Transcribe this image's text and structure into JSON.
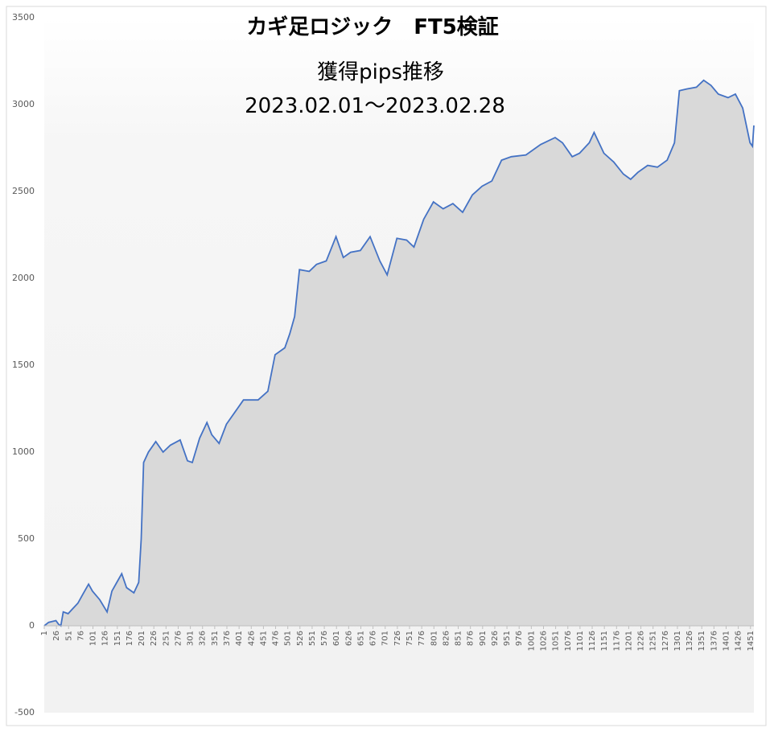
{
  "chart_data": {
    "type": "area",
    "title": "カギ足ロジック　FT5検証",
    "subtitle": "獲得pips推移",
    "date_range": "2023.02.01～2023.02.28",
    "x": [
      1,
      10,
      25,
      30,
      35,
      40,
      50,
      60,
      70,
      80,
      92,
      100,
      115,
      130,
      140,
      150,
      160,
      170,
      185,
      195,
      200,
      205,
      215,
      230,
      245,
      260,
      280,
      295,
      305,
      320,
      335,
      345,
      360,
      375,
      395,
      410,
      425,
      440,
      460,
      475,
      495,
      505,
      515,
      525,
      545,
      560,
      580,
      600,
      615,
      630,
      650,
      670,
      690,
      705,
      725,
      745,
      760,
      780,
      800,
      820,
      840,
      860,
      880,
      900,
      920,
      940,
      960,
      990,
      1020,
      1050,
      1065,
      1085,
      1100,
      1120,
      1130,
      1150,
      1170,
      1190,
      1205,
      1220,
      1240,
      1260,
      1280,
      1295,
      1305,
      1320,
      1340,
      1355,
      1370,
      1385,
      1405,
      1420,
      1435,
      1450,
      1455,
      1458
    ],
    "series": [
      {
        "name": "獲得pips",
        "color": "#4472c4",
        "values": [
          0,
          20,
          30,
          10,
          0,
          80,
          70,
          100,
          130,
          180,
          240,
          200,
          150,
          80,
          200,
          250,
          300,
          220,
          190,
          250,
          500,
          940,
          1000,
          1060,
          1000,
          1040,
          1070,
          950,
          940,
          1080,
          1170,
          1100,
          1050,
          1160,
          1240,
          1300,
          1300,
          1300,
          1350,
          1560,
          1600,
          1680,
          1780,
          2050,
          2040,
          2080,
          2100,
          2240,
          2120,
          2150,
          2160,
          2240,
          2100,
          2020,
          2230,
          2220,
          2180,
          2340,
          2440,
          2400,
          2430,
          2380,
          2480,
          2530,
          2560,
          2680,
          2700,
          2710,
          2770,
          2810,
          2780,
          2700,
          2720,
          2780,
          2840,
          2720,
          2670,
          2600,
          2570,
          2610,
          2650,
          2640,
          2680,
          2780,
          3080,
          3090,
          3100,
          3140,
          3110,
          3060,
          3040,
          3060,
          2980,
          2780,
          2760,
          2880
        ]
      }
    ],
    "xlim": [
      1,
      1458
    ],
    "xticks": [
      1,
      26,
      51,
      76,
      101,
      126,
      151,
      176,
      201,
      226,
      251,
      276,
      301,
      326,
      351,
      376,
      401,
      426,
      451,
      476,
      501,
      526,
      551,
      576,
      601,
      626,
      651,
      676,
      701,
      726,
      751,
      776,
      801,
      826,
      851,
      876,
      901,
      926,
      951,
      976,
      1001,
      1026,
      1051,
      1076,
      1101,
      1126,
      1151,
      1176,
      1201,
      1226,
      1251,
      1276,
      1301,
      1326,
      1351,
      1376,
      1401,
      1426,
      1451
    ],
    "ylim": [
      -500,
      3500
    ],
    "yticks": [
      -500,
      0,
      500,
      1000,
      1500,
      2000,
      2500,
      3000,
      3500
    ],
    "fill_color": "#d9d9d9"
  }
}
